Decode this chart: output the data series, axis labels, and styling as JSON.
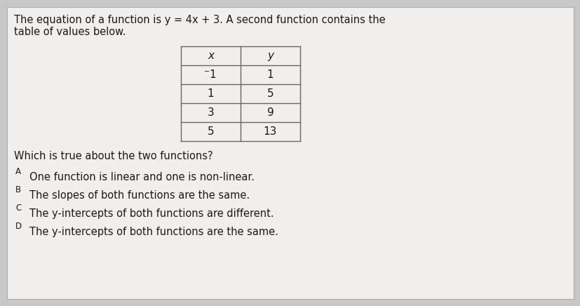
{
  "bg_color": "#c8c8c8",
  "card_color": "#f0efed",
  "title_line1": "The equation of a function is y = 4x + 3. A second function contains the",
  "title_line2": "table of values below.",
  "table_headers": [
    "x",
    "y"
  ],
  "table_data": [
    [
      "−1",
      "1"
    ],
    [
      "1",
      "5"
    ],
    [
      "3",
      "9"
    ],
    [
      "5",
      "13"
    ]
  ],
  "question": "Which is true about the two functions?",
  "choices": [
    [
      "A",
      "One function is linear and one is non-linear."
    ],
    [
      "B",
      "The slopes of both functions are the same."
    ],
    [
      "C",
      "The y-intercepts of both functions are different."
    ],
    [
      "D",
      "The y-intercepts of both functions are the same."
    ]
  ],
  "text_color": "#1a1a1a",
  "table_border_color": "#666666",
  "title_fontsize": 10.5,
  "question_fontsize": 10.5,
  "choice_fontsize": 10.5,
  "table_fontsize": 11,
  "letter_fontsize": 8.5
}
